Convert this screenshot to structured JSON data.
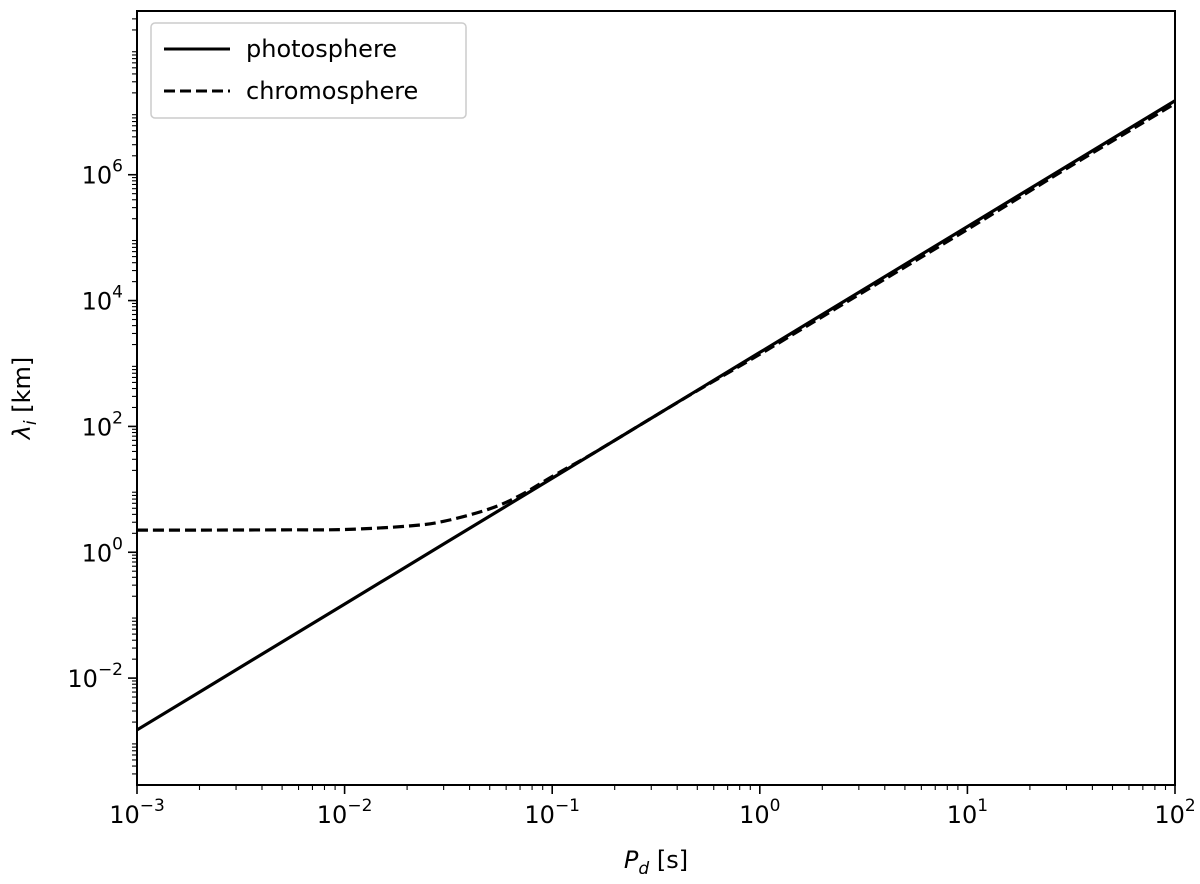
{
  "chart_data": {
    "type": "line",
    "xscale": "log",
    "yscale": "log",
    "xlim": [
      0.001,
      100
    ],
    "ylim": [
      0.0002,
      400000000
    ],
    "x_ticks": [
      {
        "base": "10",
        "exp": "−3",
        "value": 0.001
      },
      {
        "base": "10",
        "exp": "−2",
        "value": 0.01
      },
      {
        "base": "10",
        "exp": "−1",
        "value": 0.1
      },
      {
        "base": "10",
        "exp": "0",
        "value": 1
      },
      {
        "base": "10",
        "exp": "1",
        "value": 10
      },
      {
        "base": "10",
        "exp": "2",
        "value": 100
      }
    ],
    "y_ticks": [
      {
        "base": "10",
        "exp": "−2",
        "value": 0.01
      },
      {
        "base": "10",
        "exp": "0",
        "value": 1
      },
      {
        "base": "10",
        "exp": "2",
        "value": 100
      },
      {
        "base": "10",
        "exp": "4",
        "value": 10000
      },
      {
        "base": "10",
        "exp": "6",
        "value": 1000000
      }
    ],
    "xlabel": {
      "main": "P",
      "sub": "d",
      "unit": " [s]"
    },
    "ylabel": {
      "main": "λ",
      "sub": "i",
      "unit": " [km]"
    },
    "legend_position": "top-left",
    "grid": false,
    "series": [
      {
        "name": "photosphere",
        "style": "solid",
        "color": "#000000",
        "x": [
          0.001,
          0.003,
          0.01,
          0.03,
          0.1,
          0.3,
          1,
          3,
          10,
          30,
          100
        ],
        "y": [
          0.0015,
          0.0135,
          0.15,
          1.35,
          15,
          135,
          1500,
          13500,
          150000,
          1350000,
          15000000
        ]
      },
      {
        "name": "chromosphere",
        "style": "dashed",
        "color": "#000000",
        "x": [
          0.001,
          0.002,
          0.005,
          0.01,
          0.02,
          0.03,
          0.05,
          0.07,
          0.1,
          0.15,
          0.2,
          0.3,
          0.5,
          1,
          3,
          10,
          30,
          100
        ],
        "y": [
          2.25,
          2.25,
          2.27,
          2.3,
          2.6,
          3.1,
          4.9,
          8.0,
          16.0,
          34.0,
          60.0,
          135,
          370,
          1400,
          12400,
          135000,
          1250000,
          13500000
        ]
      }
    ]
  }
}
